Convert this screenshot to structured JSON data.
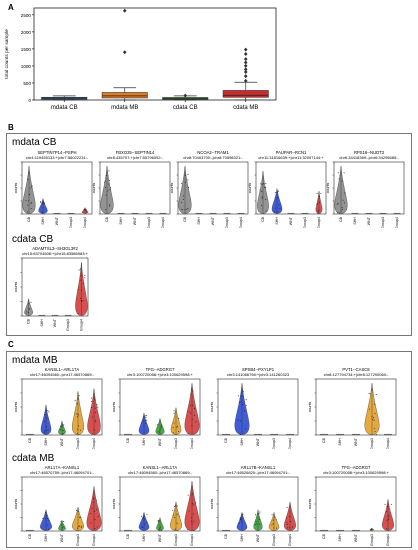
{
  "panels": {
    "a": "A",
    "b": "B",
    "c": "C"
  },
  "sections": {
    "mdata_cb": "mdata CB",
    "cdata_cb": "cdata CB",
    "mdata_mb": "mdata MB",
    "cdata_mb": "cdata MB"
  },
  "fusion_titles": {
    "mdata_cb": [
      [
        "SEPTIN7P14--PSPH",
        "chr4:119455133:+|chr7:56022231:-"
      ],
      [
        "FBXO25--SEPTIN14",
        "chr8:435707:+|chr7:55796092:-"
      ],
      [
        "NCOA2--TRAM1",
        "chr8:70403700:-|chr8:70598321:-"
      ],
      [
        "PAUPAR--RCN1",
        "chr11:31816639:+|chr11:32097144:+"
      ],
      [
        "RPS16--NUDT3",
        "chr6:34418369:-|chr6:34295685:-"
      ]
    ],
    "cdata_cb": [
      [
        "ADAMTSL3--SH3GL3#2",
        "chr15:83704508:+|chr15:83586983:+"
      ]
    ],
    "mdata_mb": [
      [
        "KANSL1--ARL17A",
        "chr17:46094560:-|chr17:46570869:-"
      ],
      [
        "TFG--ADGRG7",
        "chr3:100720058:+|chr3:100629598:+"
      ],
      [
        "SPSB4--PXYLP1",
        "chr3:141066798:+|chr3:141260323"
      ],
      [
        "PVT1--CASC8",
        "chr8:127794734:+|chr8:127290060:-"
      ]
    ],
    "cdata_mb": [
      [
        "ARL17A--KANSL1",
        "chr17:46570759:-|chr17:46094701:-"
      ],
      [
        "KANSL1--ARL17A",
        "chr17:46094560:-|chr17:46570869:-"
      ],
      [
        "ARL17B--KANSL1",
        "chr17:46526820:-|chr17:46094701:-"
      ],
      [
        "TFG--ADGRG7",
        "chr3:100720058:+|chr3:100629598:+"
      ]
    ]
  },
  "chart_data": [
    {
      "type": "box",
      "panel": "A",
      "ylabel": "total counts per sample",
      "categories": [
        "mdata CB",
        "mdata MB",
        "cdata CB",
        "cdata MB"
      ],
      "ylim": [
        0,
        2700
      ],
      "yticks": [
        0,
        500,
        1000,
        1500,
        2000,
        2500
      ],
      "grid": false,
      "boxes": [
        {
          "color": "#3b6fb6",
          "q1": 25,
          "median": 55,
          "q3": 80,
          "whisker_low": 0,
          "whisker_high": 120,
          "fliers": []
        },
        {
          "color": "#e07b22",
          "q1": 60,
          "median": 120,
          "q3": 220,
          "whisker_low": 0,
          "whisker_high": 360,
          "fliers": [
            1400,
            2620
          ]
        },
        {
          "color": "#3a9a3a",
          "q1": 20,
          "median": 45,
          "q3": 75,
          "whisker_low": 0,
          "whisker_high": 120,
          "fliers": [
            130
          ]
        },
        {
          "color": "#cc2b2b",
          "q1": 80,
          "median": 140,
          "q3": 280,
          "whisker_low": 0,
          "whisker_high": 520,
          "fliers": [
            560,
            700,
            820,
            900,
            1000,
            1100,
            1200,
            1350,
            1480
          ]
        }
      ]
    },
    {
      "type": "violin",
      "panel": "B",
      "ylabel": "counts",
      "groups": [
        "CB",
        "SHH",
        "WNT",
        "Group3",
        "Group4"
      ],
      "group_colors": [
        "#808080",
        "#2040d0",
        "#2e9a2e",
        "#e09a20",
        "#d03030"
      ]
    },
    {
      "type": "violin",
      "panel": "C",
      "ylabel": "counts",
      "groups": [
        "CB",
        "SHH",
        "WNT",
        "Group3",
        "Group4"
      ],
      "group_colors": [
        "#808080",
        "#2040d0",
        "#2e9a2e",
        "#e09a20",
        "#d03030"
      ]
    }
  ]
}
